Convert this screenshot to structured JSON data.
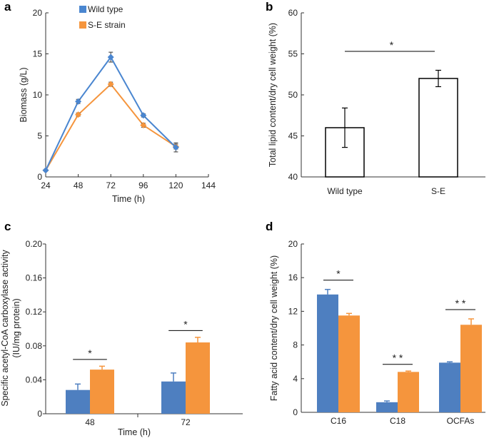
{
  "chart_data": [
    {
      "panel": "a",
      "type": "line",
      "x": [
        24,
        48,
        72,
        96,
        120
      ],
      "series": [
        {
          "name": "Wild type",
          "color": "#4a86d0",
          "values": [
            0.8,
            9.2,
            14.6,
            7.5,
            3.6
          ],
          "errors": [
            0,
            0.25,
            0.6,
            0.2,
            0.55
          ]
        },
        {
          "name": "S-E strain",
          "color": "#f5953d",
          "values": [
            0.8,
            7.6,
            11.3,
            6.3,
            3.7
          ],
          "errors": [
            0,
            0.2,
            0.25,
            0.25,
            0.3
          ]
        }
      ],
      "xlabel": "Time (h)",
      "ylabel": "Biomass (g/L)",
      "xticks": [
        "24",
        "48",
        "72",
        "96",
        "120",
        "144"
      ],
      "yticks": [
        "0",
        "5",
        "10",
        "15",
        "20"
      ],
      "xlim": [
        24,
        144
      ],
      "ylim": [
        0,
        20
      ],
      "legend": "top-left"
    },
    {
      "panel": "b",
      "type": "bar",
      "categories": [
        "Wild type",
        "S-E"
      ],
      "values": [
        46.0,
        52.0
      ],
      "errors": [
        2.4,
        1.0
      ],
      "ylabel": "Total lipid content/dry cell weight (%)",
      "yticks": [
        "40",
        "45",
        "50",
        "55",
        "60"
      ],
      "ylim": [
        40,
        60
      ],
      "significance": [
        {
          "label": "*",
          "y": 55.3
        }
      ]
    },
    {
      "panel": "c",
      "type": "bar",
      "categories": [
        "48",
        "72"
      ],
      "series": [
        {
          "name": "Wild type",
          "color": "#4e7fc0",
          "values": [
            0.028,
            0.038
          ],
          "errors": [
            0.007,
            0.01
          ]
        },
        {
          "name": "S-E strain",
          "color": "#f5953d",
          "values": [
            0.052,
            0.084
          ],
          "errors": [
            0.004,
            0.006
          ]
        }
      ],
      "xlabel": "Time (h)",
      "ylabel": "Specific acetyl-CoA carboxylase activity (IU/mg protein)",
      "ylabel_lines": [
        "Specific acetyl-CoA carboxylase activity",
        "(IU/mg protein)"
      ],
      "yticks": [
        "0",
        "0.04",
        "0.08",
        "0.12",
        "0.16",
        "0.20"
      ],
      "ylim": [
        0,
        0.2
      ],
      "significance": [
        {
          "label": "*",
          "y": 0.064
        },
        {
          "label": "*",
          "y": 0.098
        }
      ]
    },
    {
      "panel": "d",
      "type": "bar",
      "categories": [
        "C16",
        "C18",
        "OCFAs"
      ],
      "series": [
        {
          "name": "Wild type",
          "color": "#4e7fc0",
          "values": [
            14.0,
            1.2,
            5.9
          ],
          "errors": [
            0.6,
            0.15,
            0.1
          ]
        },
        {
          "name": "S-E strain",
          "color": "#f5953d",
          "values": [
            11.5,
            4.8,
            10.4
          ],
          "errors": [
            0.25,
            0.1,
            0.7
          ]
        }
      ],
      "ylabel": "Fatty acid content/dry cell weight (%)",
      "yticks": [
        "0",
        "4",
        "8",
        "12",
        "16",
        "20"
      ],
      "ylim": [
        0,
        20
      ],
      "significance": [
        {
          "label": "*",
          "y": 15.7
        },
        {
          "label": "* *",
          "y": 5.7
        },
        {
          "label": "* *",
          "y": 12.2
        }
      ]
    }
  ]
}
